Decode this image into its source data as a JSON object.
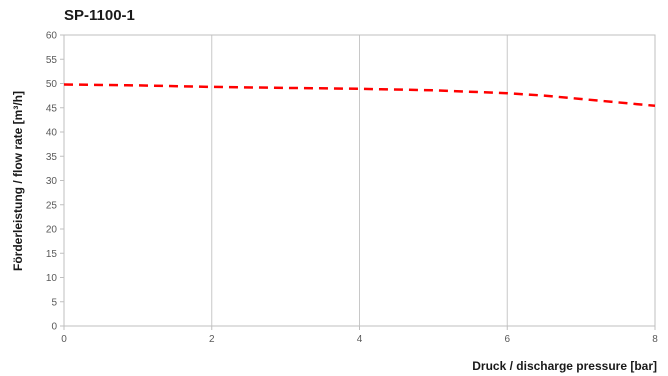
{
  "chart_data": {
    "type": "line",
    "title": "SP-1100-1",
    "xlabel": "Druck / discharge pressure [bar]",
    "ylabel": "Förderleistung / flow rate  [m³/h]",
    "xlim": [
      0,
      8
    ],
    "ylim": [
      0,
      60
    ],
    "x_ticks": [
      0,
      2,
      4,
      6,
      8
    ],
    "y_ticks": [
      0,
      5,
      10,
      15,
      20,
      25,
      30,
      35,
      40,
      45,
      50,
      55,
      60
    ],
    "grid": "vertical",
    "legend": "none",
    "series": [
      {
        "color": "#ff0000",
        "line_style": "dashed",
        "x": [
          0,
          1,
          2,
          3,
          4,
          5,
          6,
          6.5,
          7,
          7.5,
          8
        ],
        "y": [
          49.8,
          49.6,
          49.3,
          49.1,
          48.9,
          48.6,
          48.0,
          47.5,
          46.8,
          46.1,
          45.4
        ]
      }
    ]
  }
}
